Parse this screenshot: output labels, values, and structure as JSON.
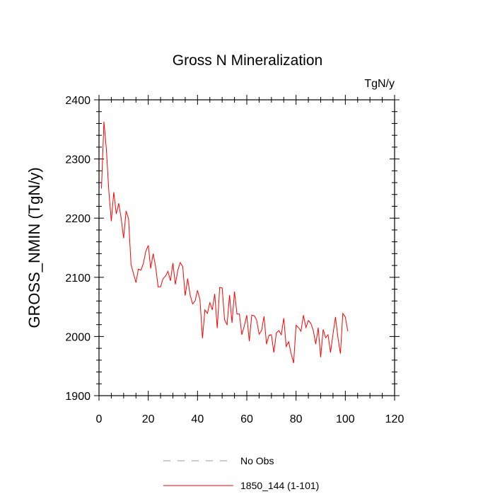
{
  "chart_data": {
    "type": "line",
    "title": "Gross N Mineralization",
    "units_label": "TgN/y",
    "xlabel": "",
    "ylabel": "GROSS_NMIN  (TgN/y)",
    "xlim": [
      0,
      120
    ],
    "ylim": [
      1900,
      2400
    ],
    "xticks": [
      0,
      20,
      40,
      60,
      80,
      100,
      120
    ],
    "yticks": [
      1900,
      2000,
      2100,
      2200,
      2300,
      2400
    ],
    "grid": false,
    "legend_position": "bottom",
    "legend": [
      {
        "label": "No Obs",
        "color": "#999999",
        "style": "dashed"
      },
      {
        "label": "1850_144 (1-101)",
        "color": "#ff0000",
        "style": "solid"
      }
    ],
    "series": [
      {
        "name": "1850_144 (1-101)",
        "color": "#ff0000",
        "x_start": 1,
        "values": [
          2250,
          2363,
          2317,
          2246,
          2195,
          2244,
          2207,
          2225,
          2200,
          2166,
          2212,
          2199,
          2122,
          2106,
          2091,
          2114,
          2112,
          2123,
          2144,
          2154,
          2115,
          2140,
          2118,
          2084,
          2084,
          2098,
          2102,
          2110,
          2094,
          2124,
          2088,
          2112,
          2125,
          2118,
          2069,
          2098,
          2070,
          2055,
          2060,
          2078,
          2062,
          1997,
          2045,
          2039,
          2057,
          2045,
          2072,
          2014,
          2083,
          2082,
          2028,
          2020,
          2070,
          2023,
          2076,
          2038,
          2038,
          2003,
          2018,
          2036,
          1992,
          2036,
          2035,
          2028,
          2004,
          2010,
          2034,
          1987,
          2002,
          2003,
          1973,
          2006,
          2010,
          2003,
          2031,
          1983,
          1991,
          1971,
          1955,
          2019,
          2015,
          2009,
          2036,
          2015,
          2027,
          2022,
          2010,
          1987,
          2015,
          1965,
          2012,
          1998,
          2003,
          1973,
          2004,
          2033,
          1998,
          1971,
          2039,
          2033,
          2009
        ]
      }
    ]
  }
}
